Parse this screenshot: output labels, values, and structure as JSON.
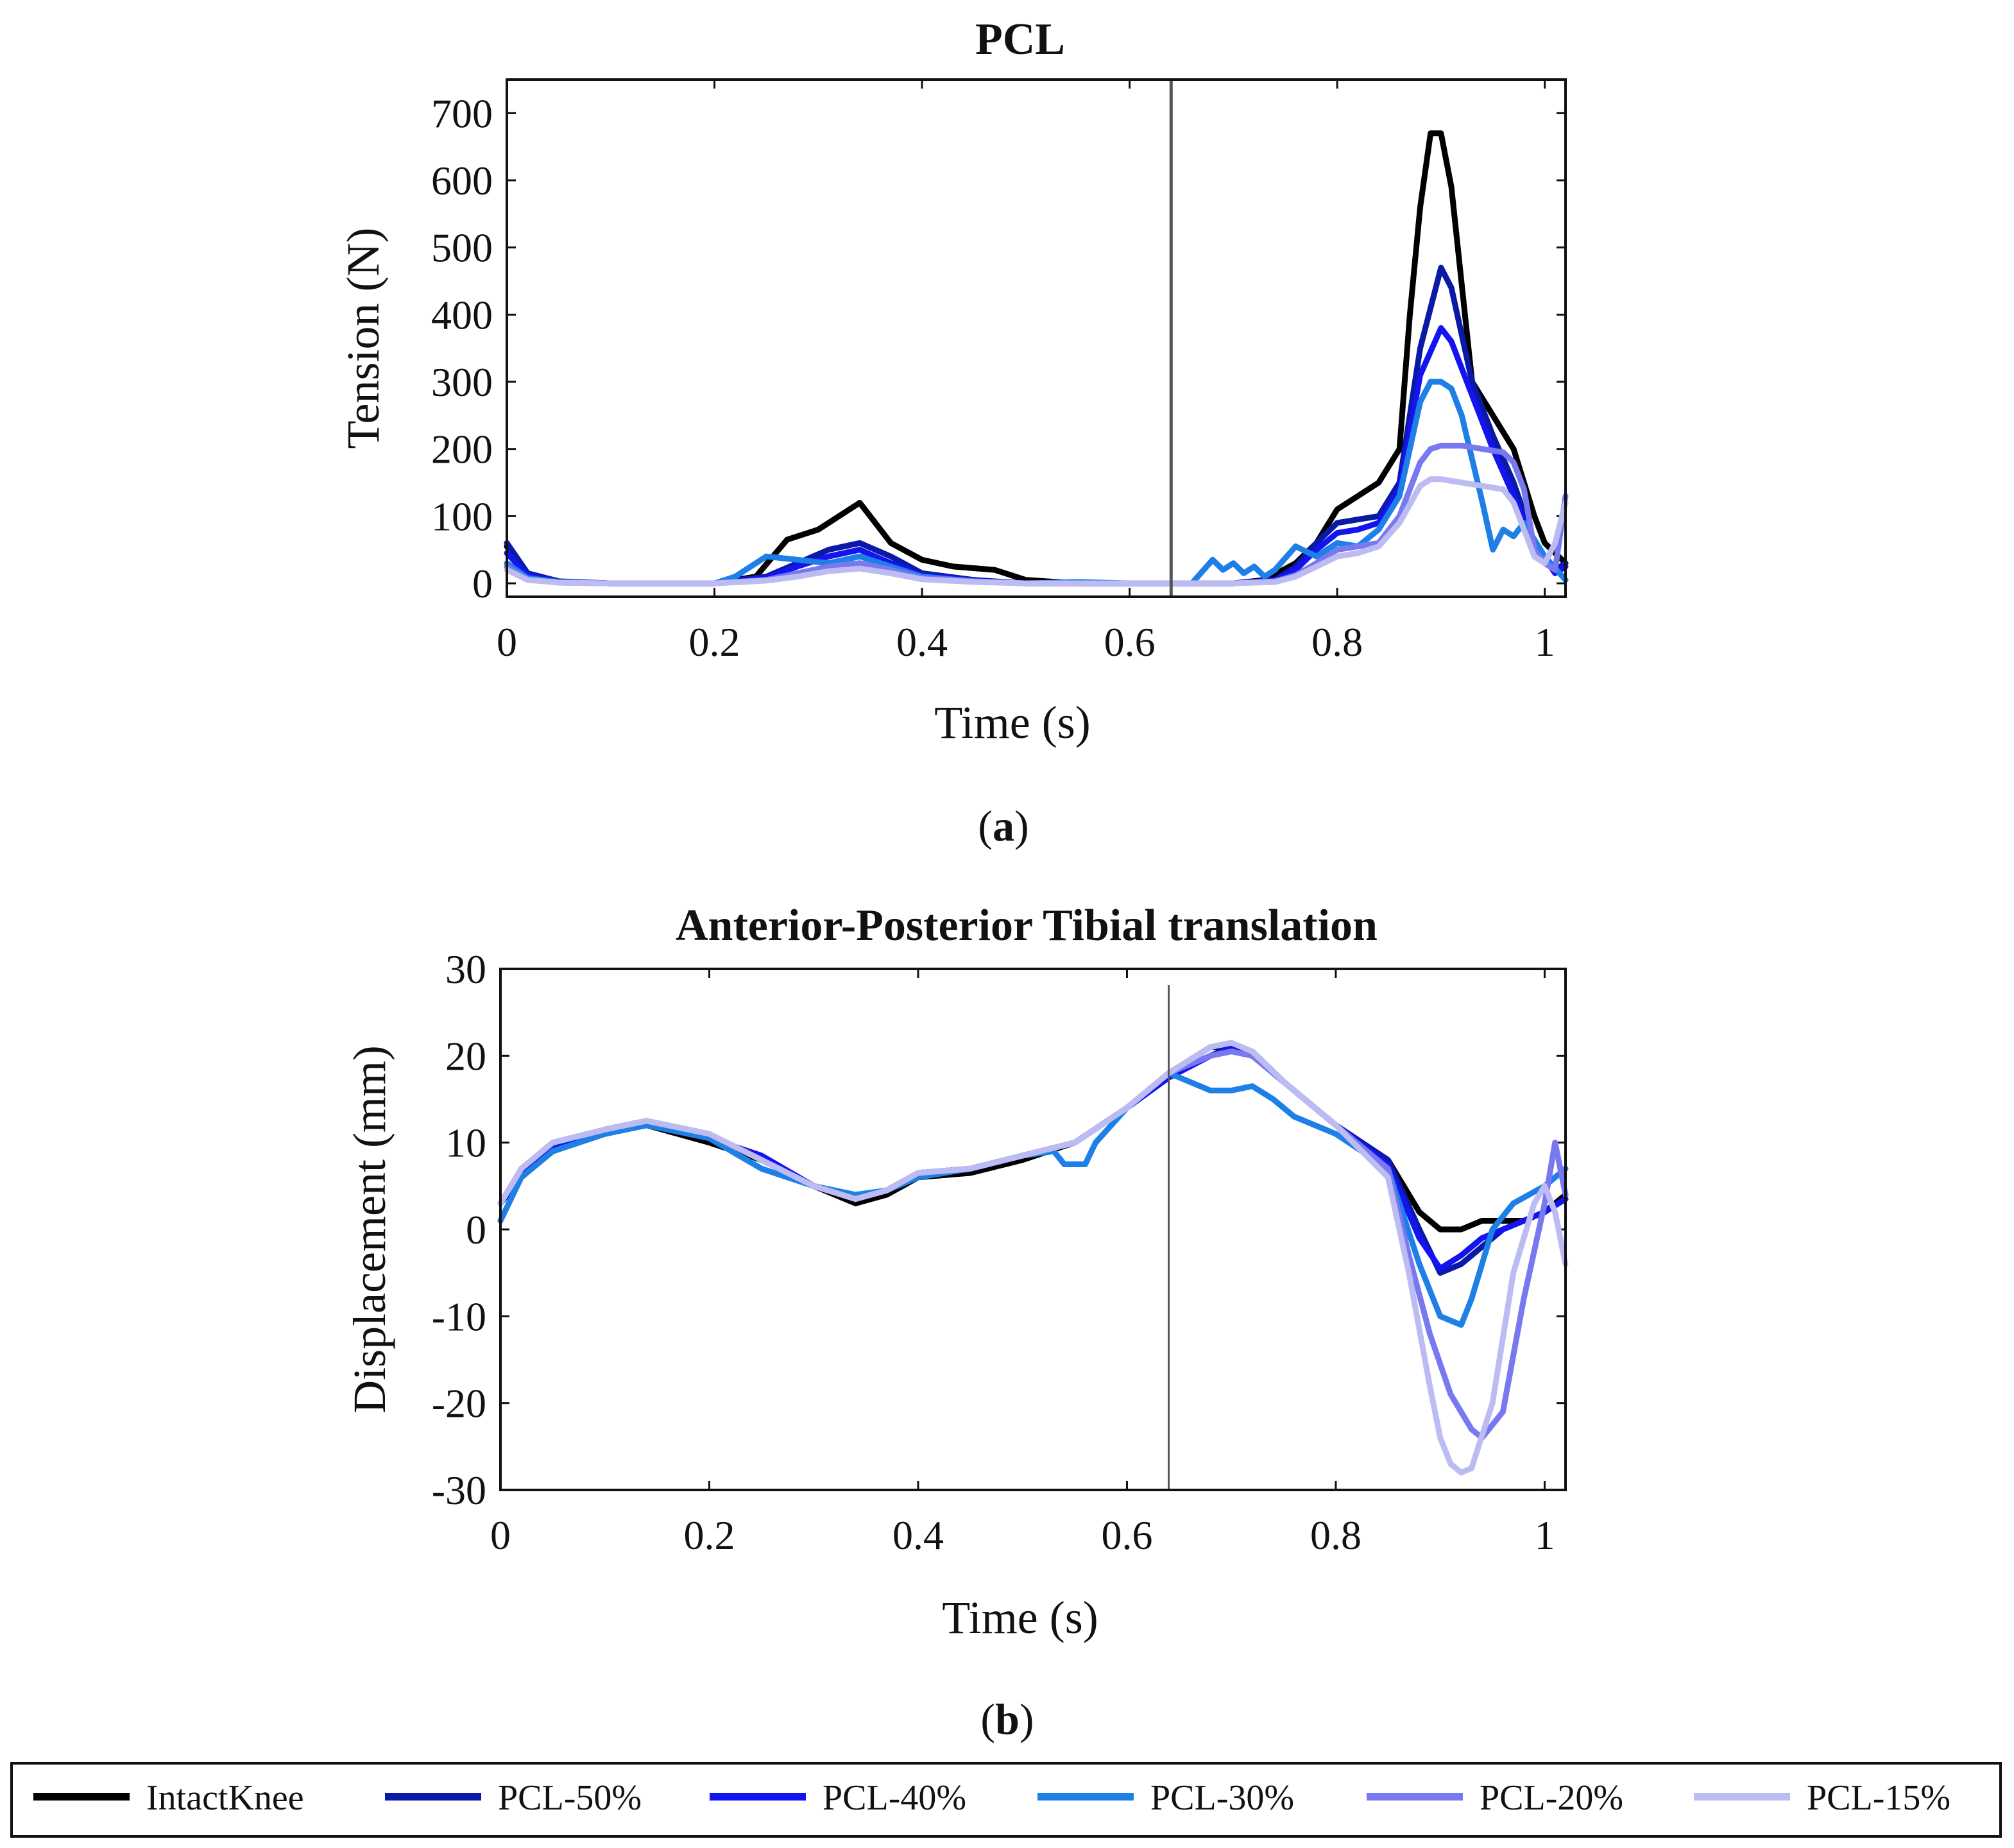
{
  "figure": {
    "panel_a_label": "a",
    "panel_b_label": "b"
  },
  "legend": {
    "entries": [
      {
        "label": "IntactKnee",
        "color": "#000000"
      },
      {
        "label": "PCL-50%",
        "color": "#0a1aa6"
      },
      {
        "label": "PCL-40%",
        "color": "#1414f0"
      },
      {
        "label": "PCL-30%",
        "color": "#1e7fe6"
      },
      {
        "label": "PCL-20%",
        "color": "#7878f0"
      },
      {
        "label": "PCL-15%",
        "color": "#bcbcf2"
      }
    ]
  },
  "chart_data": [
    {
      "type": "line",
      "title": "PCL",
      "xlabel": "Time (s)",
      "ylabel": "Tension (N)",
      "xlim": [
        0,
        1.02
      ],
      "ylim": [
        -20,
        750
      ],
      "xticks": [
        0,
        0.2,
        0.4,
        0.6,
        0.8,
        1
      ],
      "xtick_labels": [
        "0",
        "0.2",
        "0.4",
        "0.6",
        "0.8",
        "1"
      ],
      "yticks": [
        0,
        100,
        200,
        300,
        400,
        500,
        600,
        700
      ],
      "ytick_labels": [
        "0",
        "100",
        "200",
        "300",
        "400",
        "500",
        "600",
        "700"
      ],
      "vline_x": 0.64,
      "series": [
        {
          "name": "IntactKnee",
          "color": "#000000",
          "x": [
            0,
            0.02,
            0.05,
            0.1,
            0.2,
            0.24,
            0.27,
            0.3,
            0.34,
            0.37,
            0.4,
            0.43,
            0.47,
            0.5,
            0.55,
            0.6,
            0.64,
            0.7,
            0.73,
            0.76,
            0.78,
            0.8,
            0.82,
            0.84,
            0.86,
            0.87,
            0.88,
            0.89,
            0.9,
            0.91,
            0.93,
            0.95,
            0.97,
            0.99,
            1.0,
            1.02
          ],
          "y": [
            55,
            10,
            2,
            0,
            0,
            10,
            65,
            80,
            120,
            60,
            35,
            25,
            20,
            5,
            0,
            0,
            0,
            0,
            5,
            30,
            60,
            110,
            130,
            150,
            200,
            400,
            560,
            670,
            670,
            590,
            300,
            250,
            200,
            100,
            60,
            30
          ]
        },
        {
          "name": "PCL-50%",
          "color": "#0a1aa6",
          "x": [
            0,
            0.02,
            0.05,
            0.1,
            0.2,
            0.25,
            0.28,
            0.31,
            0.34,
            0.37,
            0.4,
            0.45,
            0.5,
            0.6,
            0.64,
            0.7,
            0.74,
            0.76,
            0.78,
            0.8,
            0.82,
            0.84,
            0.86,
            0.88,
            0.9,
            0.91,
            0.93,
            0.95,
            0.97,
            0.99,
            1.01,
            1.02
          ],
          "y": [
            60,
            15,
            3,
            0,
            0,
            10,
            30,
            50,
            60,
            40,
            15,
            5,
            0,
            0,
            0,
            0,
            5,
            25,
            60,
            90,
            95,
            100,
            150,
            350,
            470,
            440,
            300,
            220,
            150,
            60,
            20,
            30
          ]
        },
        {
          "name": "PCL-40%",
          "color": "#1414f0",
          "x": [
            0,
            0.02,
            0.05,
            0.1,
            0.2,
            0.25,
            0.28,
            0.31,
            0.34,
            0.37,
            0.4,
            0.45,
            0.5,
            0.6,
            0.64,
            0.7,
            0.74,
            0.76,
            0.78,
            0.8,
            0.82,
            0.84,
            0.86,
            0.88,
            0.9,
            0.91,
            0.93,
            0.95,
            0.97,
            0.99,
            1.01,
            1.02
          ],
          "y": [
            45,
            12,
            2,
            0,
            0,
            8,
            25,
            40,
            50,
            30,
            12,
            4,
            0,
            0,
            0,
            0,
            5,
            20,
            50,
            75,
            80,
            90,
            140,
            310,
            380,
            360,
            280,
            200,
            130,
            60,
            15,
            25
          ]
        },
        {
          "name": "PCL-30%",
          "color": "#1e7fe6",
          "x": [
            0,
            0.02,
            0.05,
            0.1,
            0.2,
            0.22,
            0.25,
            0.28,
            0.31,
            0.34,
            0.37,
            0.4,
            0.45,
            0.5,
            0.55,
            0.6,
            0.64,
            0.66,
            0.68,
            0.69,
            0.7,
            0.71,
            0.72,
            0.73,
            0.74,
            0.76,
            0.78,
            0.8,
            0.82,
            0.84,
            0.86,
            0.88,
            0.89,
            0.9,
            0.91,
            0.92,
            0.94,
            0.95,
            0.96,
            0.97,
            0.98,
            1.0,
            1.02
          ],
          "y": [
            30,
            8,
            2,
            0,
            0,
            10,
            40,
            35,
            30,
            40,
            25,
            10,
            3,
            0,
            2,
            0,
            0,
            0,
            35,
            20,
            30,
            15,
            25,
            10,
            20,
            55,
            40,
            60,
            55,
            80,
            130,
            270,
            300,
            300,
            290,
            250,
            120,
            50,
            80,
            70,
            90,
            40,
            5
          ]
        },
        {
          "name": "PCL-20%",
          "color": "#7878f0",
          "x": [
            0,
            0.02,
            0.05,
            0.1,
            0.2,
            0.25,
            0.28,
            0.31,
            0.34,
            0.37,
            0.4,
            0.45,
            0.5,
            0.6,
            0.64,
            0.7,
            0.74,
            0.76,
            0.78,
            0.8,
            0.82,
            0.84,
            0.86,
            0.88,
            0.89,
            0.9,
            0.92,
            0.94,
            0.96,
            0.97,
            0.98,
            0.99,
            1.0,
            1.01,
            1.02
          ],
          "y": [
            25,
            6,
            1,
            0,
            0,
            5,
            15,
            25,
            30,
            20,
            8,
            3,
            0,
            0,
            0,
            0,
            3,
            12,
            30,
            50,
            55,
            60,
            100,
            180,
            200,
            205,
            205,
            200,
            195,
            180,
            140,
            50,
            30,
            20,
            130
          ]
        },
        {
          "name": "PCL-15%",
          "color": "#bcbcf2",
          "x": [
            0,
            0.02,
            0.05,
            0.1,
            0.2,
            0.25,
            0.28,
            0.31,
            0.34,
            0.37,
            0.4,
            0.45,
            0.5,
            0.6,
            0.64,
            0.7,
            0.74,
            0.76,
            0.78,
            0.8,
            0.82,
            0.84,
            0.86,
            0.88,
            0.89,
            0.9,
            0.92,
            0.94,
            0.96,
            0.97,
            0.98,
            0.99,
            1.0,
            1.01,
            1.02
          ],
          "y": [
            20,
            5,
            1,
            0,
            0,
            4,
            10,
            18,
            22,
            15,
            6,
            2,
            0,
            0,
            0,
            0,
            2,
            10,
            25,
            40,
            45,
            55,
            90,
            145,
            155,
            155,
            150,
            145,
            140,
            120,
            80,
            40,
            30,
            60,
            120
          ]
        }
      ]
    },
    {
      "type": "line",
      "title": "Anterior-Posterior Tibial translation",
      "xlabel": "Time (s)",
      "ylabel": "Displacement (mm)",
      "xlim": [
        0,
        1.02
      ],
      "ylim": [
        -30,
        30
      ],
      "xticks": [
        0,
        0.2,
        0.4,
        0.6,
        0.8,
        1
      ],
      "xtick_labels": [
        "0",
        "0.2",
        "0.4",
        "0.6",
        "0.8",
        "1"
      ],
      "yticks": [
        -30,
        -20,
        -10,
        0,
        10,
        20,
        30
      ],
      "ytick_labels": [
        "-30",
        "-20",
        "-10",
        "0",
        "10",
        "20",
        "30"
      ],
      "vline_x": 0.64,
      "series": [
        {
          "name": "IntactKnee",
          "color": "#000000",
          "x": [
            0,
            0.02,
            0.05,
            0.1,
            0.14,
            0.2,
            0.25,
            0.3,
            0.34,
            0.37,
            0.4,
            0.45,
            0.5,
            0.55,
            0.6,
            0.64,
            0.68,
            0.7,
            0.72,
            0.75,
            0.8,
            0.85,
            0.88,
            0.9,
            0.92,
            0.94,
            0.96,
            0.98,
            1.0,
            1.02
          ],
          "y": [
            3,
            6,
            9,
            11,
            12,
            10,
            8,
            5,
            3,
            4,
            6,
            6.5,
            8,
            10,
            14,
            18,
            21,
            21,
            20,
            17,
            12,
            8,
            2,
            0,
            0,
            1,
            1,
            1,
            2,
            4
          ]
        },
        {
          "name": "PCL-50%",
          "color": "#0a1aa6",
          "x": [
            0,
            0.02,
            0.05,
            0.1,
            0.14,
            0.2,
            0.25,
            0.3,
            0.34,
            0.37,
            0.4,
            0.45,
            0.5,
            0.55,
            0.6,
            0.64,
            0.68,
            0.7,
            0.72,
            0.75,
            0.8,
            0.85,
            0.88,
            0.9,
            0.92,
            0.94,
            0.96,
            0.98,
            1.0,
            1.02
          ],
          "y": [
            3,
            6.5,
            9.5,
            11.5,
            12.5,
            10.5,
            8.5,
            5,
            3.5,
            4.5,
            6.5,
            7,
            8.5,
            10,
            14,
            17.5,
            20,
            21,
            20.5,
            17,
            12,
            8,
            0,
            -5,
            -4,
            -2,
            0,
            1,
            2,
            3.5
          ]
        },
        {
          "name": "PCL-40%",
          "color": "#1414f0",
          "x": [
            0,
            0.02,
            0.05,
            0.1,
            0.14,
            0.2,
            0.25,
            0.3,
            0.34,
            0.37,
            0.4,
            0.45,
            0.5,
            0.55,
            0.6,
            0.64,
            0.68,
            0.7,
            0.72,
            0.75,
            0.8,
            0.85,
            0.88,
            0.9,
            0.92,
            0.94,
            0.96,
            0.98,
            1.0,
            1.02
          ],
          "y": [
            3,
            6.5,
            9.5,
            11.5,
            12.5,
            10.5,
            8.5,
            5,
            3.5,
            4.5,
            6.5,
            7,
            8.5,
            10,
            14,
            17.5,
            20,
            21,
            20.5,
            17,
            12,
            7.5,
            -1,
            -4.5,
            -3,
            -1,
            0,
            1,
            2,
            3.5
          ]
        },
        {
          "name": "PCL-30%",
          "color": "#1e7fe6",
          "x": [
            0,
            0.02,
            0.05,
            0.1,
            0.14,
            0.2,
            0.25,
            0.3,
            0.34,
            0.37,
            0.4,
            0.45,
            0.5,
            0.53,
            0.54,
            0.56,
            0.57,
            0.6,
            0.63,
            0.64,
            0.66,
            0.68,
            0.7,
            0.72,
            0.74,
            0.76,
            0.8,
            0.85,
            0.88,
            0.9,
            0.92,
            0.93,
            0.95,
            0.97,
            1.0,
            1.02
          ],
          "y": [
            1,
            6,
            9,
            11,
            12,
            10.5,
            7,
            5,
            4,
            4.5,
            6,
            7,
            8.5,
            9,
            7.5,
            7.5,
            10,
            14,
            17,
            18,
            17,
            16,
            16,
            16.5,
            15,
            13,
            11,
            7,
            -4,
            -10,
            -11,
            -8,
            0,
            3,
            5,
            7
          ]
        },
        {
          "name": "PCL-20%",
          "color": "#7878f0",
          "x": [
            0,
            0.02,
            0.05,
            0.1,
            0.14,
            0.2,
            0.25,
            0.3,
            0.34,
            0.37,
            0.4,
            0.45,
            0.5,
            0.55,
            0.6,
            0.64,
            0.68,
            0.7,
            0.72,
            0.75,
            0.8,
            0.85,
            0.87,
            0.89,
            0.91,
            0.93,
            0.94,
            0.96,
            0.98,
            1.0,
            1.01,
            1.02
          ],
          "y": [
            3,
            7,
            10,
            11.5,
            12.5,
            11,
            8,
            5,
            3.5,
            4.5,
            6.5,
            7,
            8.5,
            10,
            14,
            18,
            20,
            20.5,
            20,
            17,
            12,
            7,
            -3,
            -12,
            -19,
            -23,
            -24,
            -21,
            -8,
            3,
            10,
            4
          ]
        },
        {
          "name": "PCL-15%",
          "color": "#bcbcf2",
          "x": [
            0,
            0.02,
            0.05,
            0.1,
            0.14,
            0.2,
            0.25,
            0.3,
            0.34,
            0.37,
            0.4,
            0.45,
            0.5,
            0.55,
            0.6,
            0.64,
            0.68,
            0.7,
            0.72,
            0.75,
            0.8,
            0.85,
            0.87,
            0.89,
            0.9,
            0.91,
            0.92,
            0.93,
            0.95,
            0.97,
            0.99,
            1.0,
            1.01,
            1.02
          ],
          "y": [
            3,
            7,
            10,
            11.5,
            12.5,
            11,
            8,
            5,
            3.5,
            4.5,
            6.5,
            7,
            8.5,
            10,
            14,
            18,
            21,
            21.5,
            20.5,
            17,
            12,
            6,
            -5,
            -18,
            -24,
            -27,
            -28,
            -27.5,
            -20,
            -5,
            3,
            5,
            2,
            -4
          ]
        }
      ]
    }
  ]
}
